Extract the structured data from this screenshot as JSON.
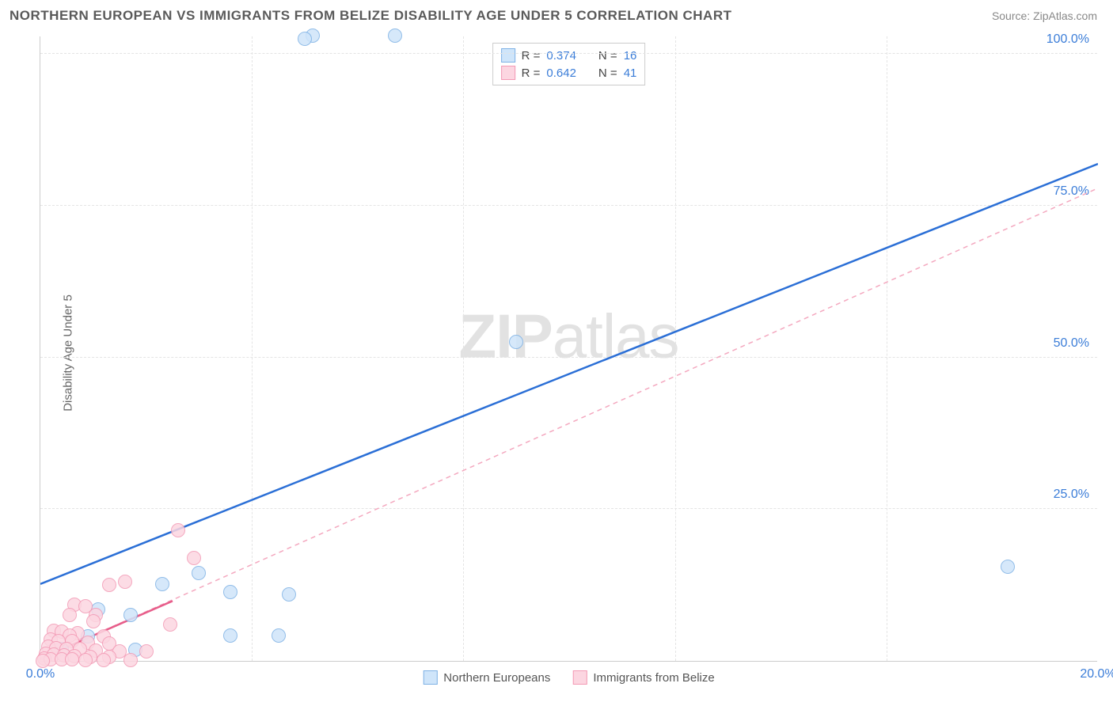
{
  "header": {
    "title": "NORTHERN EUROPEAN VS IMMIGRANTS FROM BELIZE DISABILITY AGE UNDER 5 CORRELATION CHART",
    "source": "Source: ZipAtlas.com"
  },
  "chart": {
    "type": "scatter",
    "ylabel": "Disability Age Under 5",
    "xlim": [
      0,
      20
    ],
    "ylim": [
      0,
      103
    ],
    "xticks": [
      {
        "v": 0,
        "label": "0.0%"
      },
      {
        "v": 20,
        "label": "20.0%"
      }
    ],
    "yticks": [
      {
        "v": 25,
        "label": "25.0%"
      },
      {
        "v": 50,
        "label": "50.0%"
      },
      {
        "v": 75,
        "label": "75.0%"
      },
      {
        "v": 100,
        "label": "100.0%"
      }
    ],
    "xtick_grid": [
      4,
      8,
      12,
      16
    ],
    "background_color": "#ffffff",
    "grid_color": "#e4e4e4",
    "watermark": {
      "bold": "ZIP",
      "rest": "atlas"
    },
    "series": [
      {
        "name": "Northern Europeans",
        "marker_fill": "#cfe5fa",
        "marker_stroke": "#7fb2e5",
        "marker_radius": 9,
        "trend_color": "#2b6fd6",
        "trend_width": 2.5,
        "trend_dash": "none",
        "trend": {
          "x1": 0,
          "y1": 12.8,
          "x2": 20,
          "y2": 82
        },
        "R": "0.374",
        "N": "16",
        "points": [
          {
            "x": 5.15,
            "y": 103
          },
          {
            "x": 6.7,
            "y": 103
          },
          {
            "x": 5.0,
            "y": 102.5
          },
          {
            "x": 9.0,
            "y": 52.5
          },
          {
            "x": 18.3,
            "y": 15.5
          },
          {
            "x": 4.7,
            "y": 11
          },
          {
            "x": 3.0,
            "y": 14.5
          },
          {
            "x": 3.6,
            "y": 11.3
          },
          {
            "x": 2.3,
            "y": 12.6
          },
          {
            "x": 1.1,
            "y": 8.5
          },
          {
            "x": 1.7,
            "y": 7.5
          },
          {
            "x": 0.9,
            "y": 4
          },
          {
            "x": 3.6,
            "y": 4.2
          },
          {
            "x": 4.5,
            "y": 4.2
          },
          {
            "x": 0.4,
            "y": 2
          },
          {
            "x": 1.8,
            "y": 1.8
          }
        ]
      },
      {
        "name": "Immigrants from Belize",
        "marker_fill": "#fcd6e1",
        "marker_stroke": "#f39ab5",
        "marker_radius": 9,
        "trend_color": "#f4a8bf",
        "trend_width": 1.5,
        "trend_dash": "6,5",
        "trend": {
          "x1": 0,
          "y1": 0.5,
          "x2": 20,
          "y2": 78
        },
        "trend_solid_end": {
          "x": 2.5,
          "y": 10
        },
        "solid_color": "#e75d8a",
        "R": "0.642",
        "N": "41",
        "points": [
          {
            "x": 2.6,
            "y": 21.5
          },
          {
            "x": 2.9,
            "y": 17
          },
          {
            "x": 1.3,
            "y": 12.5
          },
          {
            "x": 1.6,
            "y": 13
          },
          {
            "x": 0.65,
            "y": 9.3
          },
          {
            "x": 0.85,
            "y": 9.0
          },
          {
            "x": 0.55,
            "y": 7.5
          },
          {
            "x": 1.05,
            "y": 7.6
          },
          {
            "x": 1.0,
            "y": 6.5
          },
          {
            "x": 2.45,
            "y": 6
          },
          {
            "x": 0.25,
            "y": 5
          },
          {
            "x": 0.4,
            "y": 4.8
          },
          {
            "x": 0.7,
            "y": 4.6
          },
          {
            "x": 0.55,
            "y": 4.2
          },
          {
            "x": 1.2,
            "y": 4.1
          },
          {
            "x": 0.2,
            "y": 3.5
          },
          {
            "x": 0.35,
            "y": 3.3
          },
          {
            "x": 0.6,
            "y": 3.2
          },
          {
            "x": 0.9,
            "y": 3.0
          },
          {
            "x": 1.3,
            "y": 2.9
          },
          {
            "x": 0.15,
            "y": 2.3
          },
          {
            "x": 0.3,
            "y": 2.1
          },
          {
            "x": 0.5,
            "y": 2.0
          },
          {
            "x": 0.75,
            "y": 1.9
          },
          {
            "x": 1.05,
            "y": 1.7
          },
          {
            "x": 1.5,
            "y": 1.6
          },
          {
            "x": 2.0,
            "y": 1.6
          },
          {
            "x": 0.1,
            "y": 1.2
          },
          {
            "x": 0.25,
            "y": 1.0
          },
          {
            "x": 0.45,
            "y": 0.9
          },
          {
            "x": 0.65,
            "y": 0.8
          },
          {
            "x": 0.95,
            "y": 0.7
          },
          {
            "x": 1.3,
            "y": 0.6
          },
          {
            "x": 0.08,
            "y": 0.4
          },
          {
            "x": 0.2,
            "y": 0.3
          },
          {
            "x": 0.4,
            "y": 0.25
          },
          {
            "x": 0.6,
            "y": 0.2
          },
          {
            "x": 0.85,
            "y": 0.15
          },
          {
            "x": 1.2,
            "y": 0.1
          },
          {
            "x": 1.7,
            "y": 0.1
          },
          {
            "x": 0.05,
            "y": 0.05
          }
        ]
      }
    ]
  },
  "legend_top": {
    "rows": [
      {
        "swatch_fill": "#cfe5fa",
        "swatch_stroke": "#7fb2e5",
        "r": "0.374",
        "n": "16"
      },
      {
        "swatch_fill": "#fcd6e1",
        "swatch_stroke": "#f39ab5",
        "r": "0.642",
        "n": "41"
      }
    ]
  },
  "legend_bottom": {
    "items": [
      {
        "swatch_fill": "#cfe5fa",
        "swatch_stroke": "#7fb2e5",
        "label": "Northern Europeans"
      },
      {
        "swatch_fill": "#fcd6e1",
        "swatch_stroke": "#f39ab5",
        "label": "Immigrants from Belize"
      }
    ]
  }
}
